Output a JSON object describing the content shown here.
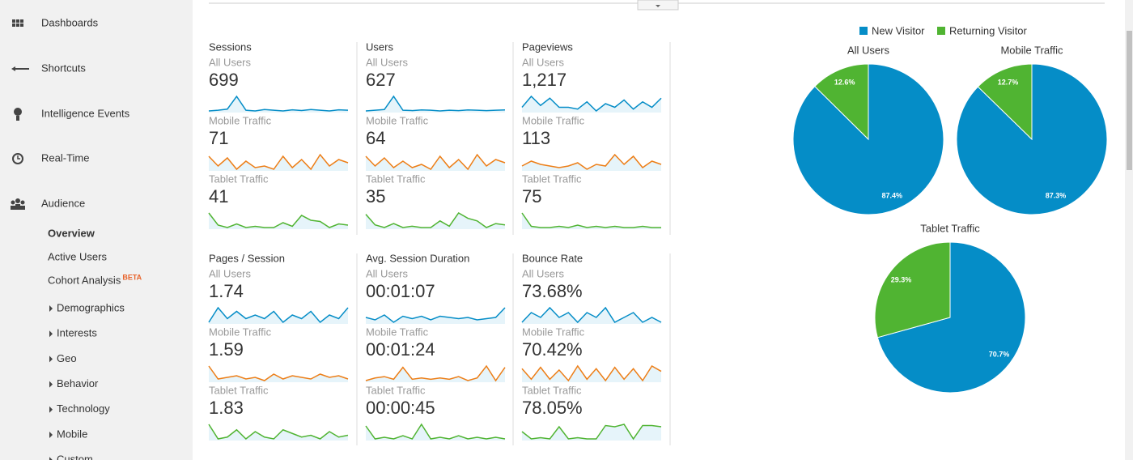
{
  "sidebar": {
    "nav": [
      "Dashboards",
      "Shortcuts",
      "Intelligence Events",
      "Real-Time",
      "Audience"
    ],
    "sub": [
      "Overview",
      "Active Users",
      "Cohort Analysis"
    ],
    "badge": "BETA",
    "expandable": [
      "Demographics",
      "Interests",
      "Geo",
      "Behavior",
      "Technology",
      "Mobile",
      "Custom"
    ]
  },
  "metrics": [
    {
      "title": "Sessions",
      "segments": [
        {
          "name": "All Users",
          "value": "699",
          "spark": [
            20,
            22,
            25,
            60,
            22,
            20,
            24,
            22,
            20,
            23,
            21,
            24,
            22,
            20,
            23,
            22
          ]
        },
        {
          "name": "Mobile Traffic",
          "value": "71",
          "spark": [
            60,
            30,
            55,
            20,
            45,
            25,
            30,
            20,
            60,
            25,
            50,
            20,
            65,
            30,
            50,
            40
          ]
        },
        {
          "name": "Tablet Traffic",
          "value": "41",
          "spark": [
            80,
            30,
            20,
            35,
            20,
            25,
            20,
            20,
            40,
            25,
            70,
            50,
            45,
            20,
            35,
            30
          ]
        }
      ]
    },
    {
      "title": "Users",
      "segments": [
        {
          "name": "All Users",
          "value": "627",
          "spark": [
            20,
            22,
            24,
            62,
            22,
            21,
            23,
            22,
            20,
            22,
            21,
            23,
            22,
            21,
            22,
            23
          ]
        },
        {
          "name": "Mobile Traffic",
          "value": "64",
          "spark": [
            60,
            30,
            55,
            25,
            45,
            25,
            35,
            20,
            60,
            25,
            50,
            20,
            65,
            30,
            50,
            40
          ]
        },
        {
          "name": "Tablet Traffic",
          "value": "35",
          "spark": [
            70,
            30,
            20,
            35,
            20,
            25,
            20,
            20,
            45,
            25,
            75,
            55,
            45,
            20,
            35,
            30
          ]
        }
      ]
    },
    {
      "title": "Pageviews",
      "segments": [
        {
          "name": "All Users",
          "value": "1,217",
          "spark": [
            40,
            70,
            45,
            65,
            40,
            40,
            35,
            55,
            30,
            50,
            40,
            60,
            35,
            55,
            40,
            65
          ]
        },
        {
          "name": "Mobile Traffic",
          "value": "113",
          "spark": [
            30,
            45,
            35,
            30,
            25,
            30,
            40,
            20,
            35,
            30,
            65,
            35,
            60,
            25,
            45,
            35
          ]
        },
        {
          "name": "Tablet Traffic",
          "value": "75",
          "spark": [
            80,
            25,
            20,
            20,
            25,
            20,
            30,
            20,
            25,
            20,
            25,
            20,
            20,
            25,
            20,
            20
          ]
        }
      ]
    },
    {
      "title": "Pages / Session",
      "segments": [
        {
          "name": "All Users",
          "value": "1.74",
          "spark": [
            40,
            60,
            45,
            55,
            45,
            50,
            45,
            55,
            40,
            50,
            45,
            55,
            40,
            50,
            45,
            60
          ]
        },
        {
          "name": "Mobile Traffic",
          "value": "1.59",
          "spark": [
            70,
            30,
            35,
            40,
            30,
            35,
            25,
            45,
            30,
            40,
            35,
            30,
            45,
            35,
            40,
            30
          ]
        },
        {
          "name": "Tablet Traffic",
          "value": "1.83",
          "spark": [
            60,
            20,
            25,
            45,
            20,
            40,
            25,
            20,
            45,
            35,
            25,
            30,
            20,
            40,
            25,
            30
          ]
        }
      ]
    },
    {
      "title": "Avg. Session Duration",
      "segments": [
        {
          "name": "All Users",
          "value": "00:01:07",
          "spark": [
            40,
            30,
            50,
            20,
            45,
            35,
            45,
            30,
            45,
            40,
            35,
            40,
            30,
            35,
            40,
            80
          ]
        },
        {
          "name": "Mobile Traffic",
          "value": "00:01:24",
          "spark": [
            20,
            30,
            35,
            25,
            70,
            25,
            30,
            25,
            30,
            25,
            35,
            20,
            30,
            75,
            20,
            70
          ]
        },
        {
          "name": "Tablet Traffic",
          "value": "00:00:45",
          "spark": [
            60,
            20,
            25,
            20,
            30,
            20,
            65,
            20,
            25,
            20,
            30,
            20,
            25,
            20,
            25,
            20
          ]
        }
      ]
    },
    {
      "title": "Bounce Rate",
      "segments": [
        {
          "name": "All Users",
          "value": "73.68%",
          "spark": [
            50,
            60,
            55,
            65,
            55,
            60,
            50,
            60,
            55,
            65,
            50,
            55,
            60,
            50,
            55,
            50
          ]
        },
        {
          "name": "Mobile Traffic",
          "value": "70.42%",
          "spark": [
            70,
            30,
            75,
            30,
            65,
            25,
            80,
            30,
            70,
            25,
            75,
            30,
            70,
            25,
            80,
            60
          ]
        },
        {
          "name": "Tablet Traffic",
          "value": "78.05%",
          "spark": [
            50,
            20,
            25,
            20,
            70,
            20,
            25,
            20,
            20,
            75,
            70,
            80,
            20,
            75,
            75,
            70
          ]
        }
      ]
    }
  ],
  "segment_colors": [
    "#058dc7",
    "#ed7e17",
    "#50b432"
  ],
  "chart_data": [
    {
      "type": "pie",
      "title": "All Users",
      "categories": [
        "New Visitor",
        "Returning Visitor"
      ],
      "values": [
        87.4,
        12.6
      ],
      "value_labels": [
        "87.4%",
        "12.6%"
      ],
      "colors": [
        "#058dc7",
        "#50b432"
      ]
    },
    {
      "type": "pie",
      "title": "Mobile Traffic",
      "categories": [
        "New Visitor",
        "Returning Visitor"
      ],
      "values": [
        87.3,
        12.7
      ],
      "value_labels": [
        "87.3%",
        "12.7%"
      ],
      "colors": [
        "#058dc7",
        "#50b432"
      ]
    },
    {
      "type": "pie",
      "title": "Tablet Traffic",
      "categories": [
        "New Visitor",
        "Returning Visitor"
      ],
      "values": [
        70.7,
        29.3
      ],
      "value_labels": [
        "70.7%",
        "29.3%"
      ],
      "colors": [
        "#058dc7",
        "#50b432"
      ]
    }
  ]
}
